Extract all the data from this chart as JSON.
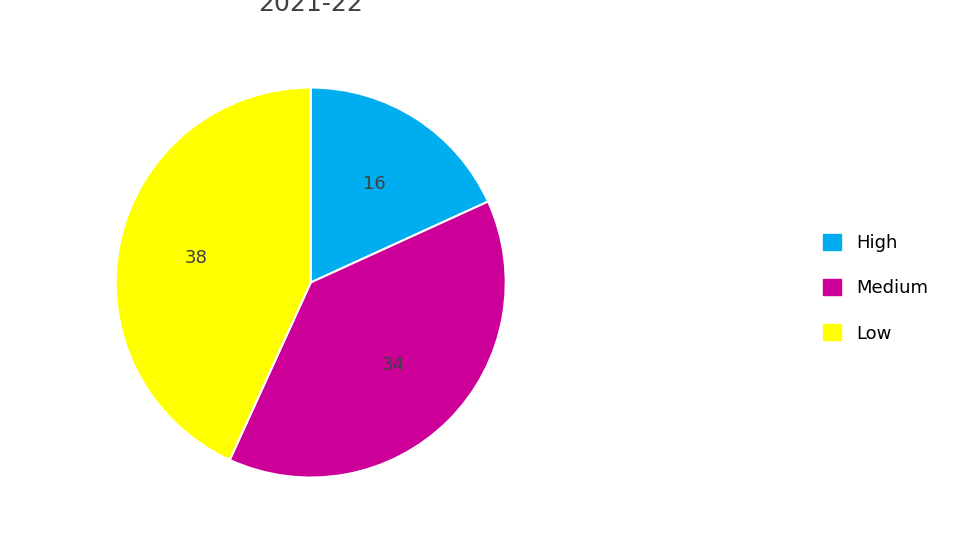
{
  "title_fontsize": 18,
  "labels": [
    "High",
    "Medium",
    "Low"
  ],
  "values": [
    16,
    34,
    38
  ],
  "colors": [
    "#00AEEF",
    "#CC0099",
    "#FFFF00"
  ],
  "legend_labels": [
    "High",
    "Medium",
    "Low"
  ],
  "background_color": "#ffffff",
  "startangle": 90,
  "label_fontsize": 13,
  "wedge_linewidth": 1.5,
  "wedge_edgecolor": "#ffffff",
  "title_color": "#404040",
  "pctdistance": 0.6
}
